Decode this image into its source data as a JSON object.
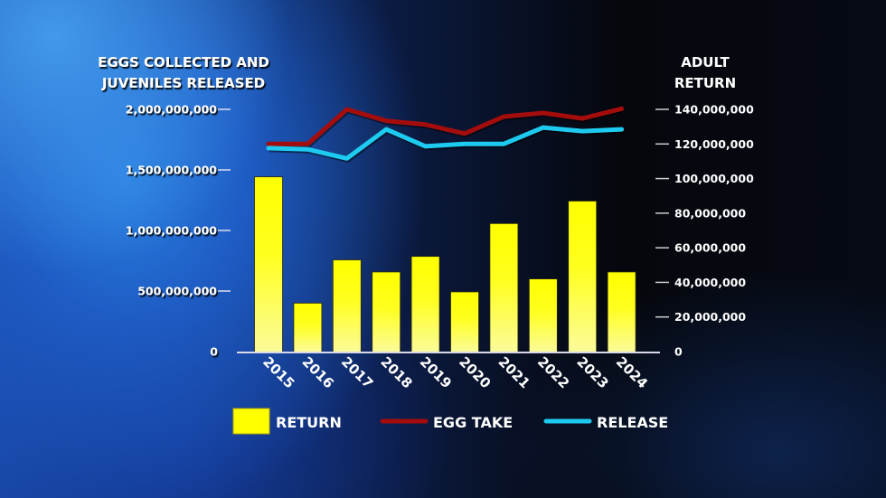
{
  "chart_data": {
    "type": "bar+line",
    "title": "",
    "left_axis": {
      "label_lines": [
        "EGGS COLLECTED AND",
        "JUVENILES RELEASED"
      ],
      "ticks": [
        0,
        500000000,
        1000000000,
        1500000000,
        2000000000
      ],
      "tick_labels": [
        "0",
        "500,000,000",
        "1,000,000,000",
        "1,500,000,000",
        "2,000,000,000"
      ],
      "range": [
        0,
        2000000000
      ]
    },
    "right_axis": {
      "label_lines": [
        "ADULT",
        "RETURN"
      ],
      "ticks": [
        0,
        20000000,
        40000000,
        60000000,
        80000000,
        100000000,
        120000000,
        140000000
      ],
      "tick_labels": [
        "0",
        "20,000,000",
        "40,000,000",
        "60,000,000",
        "80,000,000",
        "100,000,000",
        "120,000,000",
        "140,000,000"
      ],
      "range": [
        0,
        140000000
      ]
    },
    "categories": [
      "2015",
      "2016",
      "2017",
      "2018",
      "2019",
      "2020",
      "2021",
      "2022",
      "2023",
      "2024"
    ],
    "series": [
      {
        "name": "RETURN",
        "type": "bar",
        "axis": "right",
        "color": "#ffff00",
        "values": [
          101000000,
          28000000,
          53000000,
          46000000,
          55000000,
          34500000,
          74000000,
          42000000,
          87000000,
          46000000
        ]
      },
      {
        "name": "EGG TAKE",
        "type": "line",
        "axis": "left",
        "color": "#a50d0d",
        "values": [
          1715000000,
          1715000000,
          2000000000,
          1905000000,
          1875000000,
          1800000000,
          1940000000,
          1970000000,
          1925000000,
          2005000000
        ]
      },
      {
        "name": "RELEASE",
        "type": "line",
        "axis": "left",
        "color": "#1ecbf0",
        "values": [
          1680000000,
          1670000000,
          1595000000,
          1835000000,
          1695000000,
          1715000000,
          1715000000,
          1850000000,
          1820000000,
          1835000000
        ]
      }
    ],
    "legend": {
      "position": "bottom",
      "entries": [
        "RETURN",
        "EGG TAKE",
        "RELEASE"
      ]
    },
    "grid": false
  }
}
